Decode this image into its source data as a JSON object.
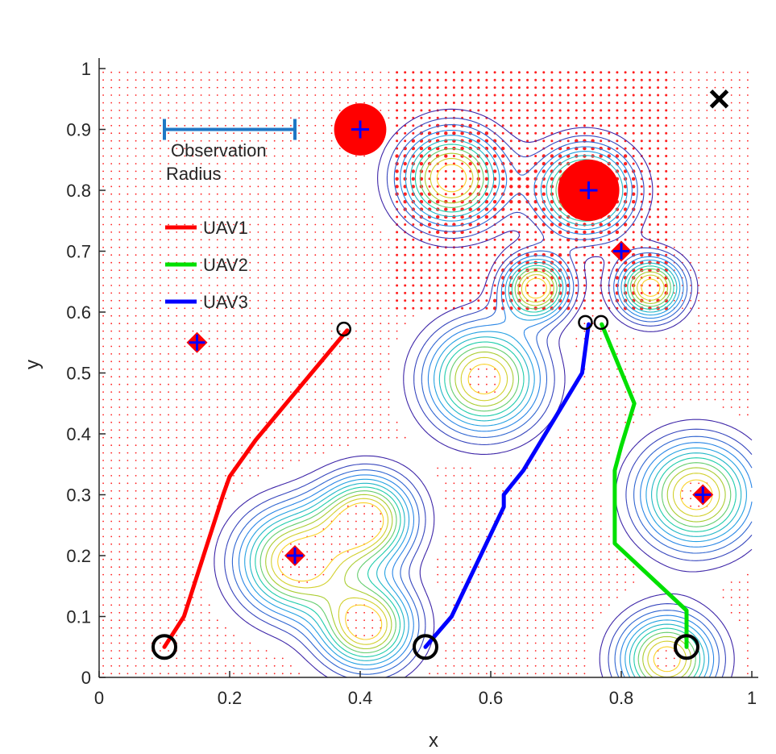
{
  "chart_data": {
    "type": "line",
    "title": "",
    "xlabel": "x",
    "ylabel": "y",
    "xlim": [
      0,
      1
    ],
    "ylim": [
      0,
      1
    ],
    "xticks": [
      0,
      0.2,
      0.4,
      0.6,
      0.8,
      1
    ],
    "yticks": [
      0,
      0.1,
      0.2,
      0.3,
      0.4,
      0.5,
      0.6,
      0.7,
      0.8,
      0.9,
      1
    ],
    "xtick_labels": [
      "0",
      "0.2",
      "0.4",
      "0.6",
      "0.8",
      "1"
    ],
    "ytick_labels": [
      "0",
      "0.1",
      "0.2",
      "0.3",
      "0.4",
      "0.5",
      "0.6",
      "0.7",
      "0.8",
      "0.9",
      "1"
    ],
    "series": [
      {
        "name": "UAV1",
        "color": "#ff0000",
        "x": [
          0.1,
          0.13,
          0.19,
          0.2,
          0.24,
          0.38
        ],
        "y": [
          0.05,
          0.1,
          0.3,
          0.33,
          0.39,
          0.57
        ]
      },
      {
        "name": "UAV2",
        "color": "#00e000",
        "x": [
          0.9,
          0.9,
          0.79,
          0.79,
          0.8,
          0.82,
          0.77
        ],
        "y": [
          0.05,
          0.11,
          0.22,
          0.34,
          0.38,
          0.45,
          0.58
        ]
      },
      {
        "name": "UAV3",
        "color": "#0000ff",
        "x": [
          0.5,
          0.54,
          0.62,
          0.62,
          0.65,
          0.74,
          0.75
        ],
        "y": [
          0.05,
          0.1,
          0.28,
          0.3,
          0.34,
          0.5,
          0.58
        ]
      }
    ],
    "start_markers": [
      {
        "x": 0.1,
        "y": 0.05
      },
      {
        "x": 0.5,
        "y": 0.05
      },
      {
        "x": 0.9,
        "y": 0.05
      }
    ],
    "end_markers": [
      {
        "x": 0.375,
        "y": 0.572
      },
      {
        "x": 0.745,
        "y": 0.583
      },
      {
        "x": 0.769,
        "y": 0.583
      }
    ],
    "targets": [
      {
        "x": 0.15,
        "y": 0.55
      },
      {
        "x": 0.3,
        "y": 0.2
      },
      {
        "x": 0.8,
        "y": 0.7
      },
      {
        "x": 0.925,
        "y": 0.3
      }
    ],
    "large_discs": [
      {
        "x": 0.4,
        "y": 0.9,
        "r": 0.04
      },
      {
        "x": 0.75,
        "y": 0.8,
        "r": 0.047
      }
    ],
    "goal_marker": {
      "x": 0.95,
      "y": 0.95
    },
    "contour_peaks": [
      {
        "x": 0.3,
        "y": 0.19,
        "s": 0.06
      },
      {
        "x": 0.41,
        "y": 0.085,
        "s": 0.05
      },
      {
        "x": 0.41,
        "y": 0.26,
        "s": 0.05
      },
      {
        "x": 0.59,
        "y": 0.49,
        "s": 0.06
      },
      {
        "x": 0.54,
        "y": 0.82,
        "s": 0.055
      },
      {
        "x": 0.745,
        "y": 0.8,
        "s": 0.05
      },
      {
        "x": 0.67,
        "y": 0.64,
        "s": 0.035
      },
      {
        "x": 0.845,
        "y": 0.64,
        "s": 0.035
      },
      {
        "x": 0.915,
        "y": 0.3,
        "s": 0.06
      },
      {
        "x": 0.87,
        "y": 0.03,
        "s": 0.05
      }
    ],
    "observation_radius": {
      "x1": 0.1,
      "x2": 0.3,
      "y": 0.9,
      "label_line1": "Observation",
      "label_line2": "Radius"
    },
    "legend": [
      {
        "name": "UAV1",
        "color": "#ff0000"
      },
      {
        "name": "UAV2",
        "color": "#00e000"
      },
      {
        "name": "UAV3",
        "color": "#0000ff"
      }
    ]
  }
}
